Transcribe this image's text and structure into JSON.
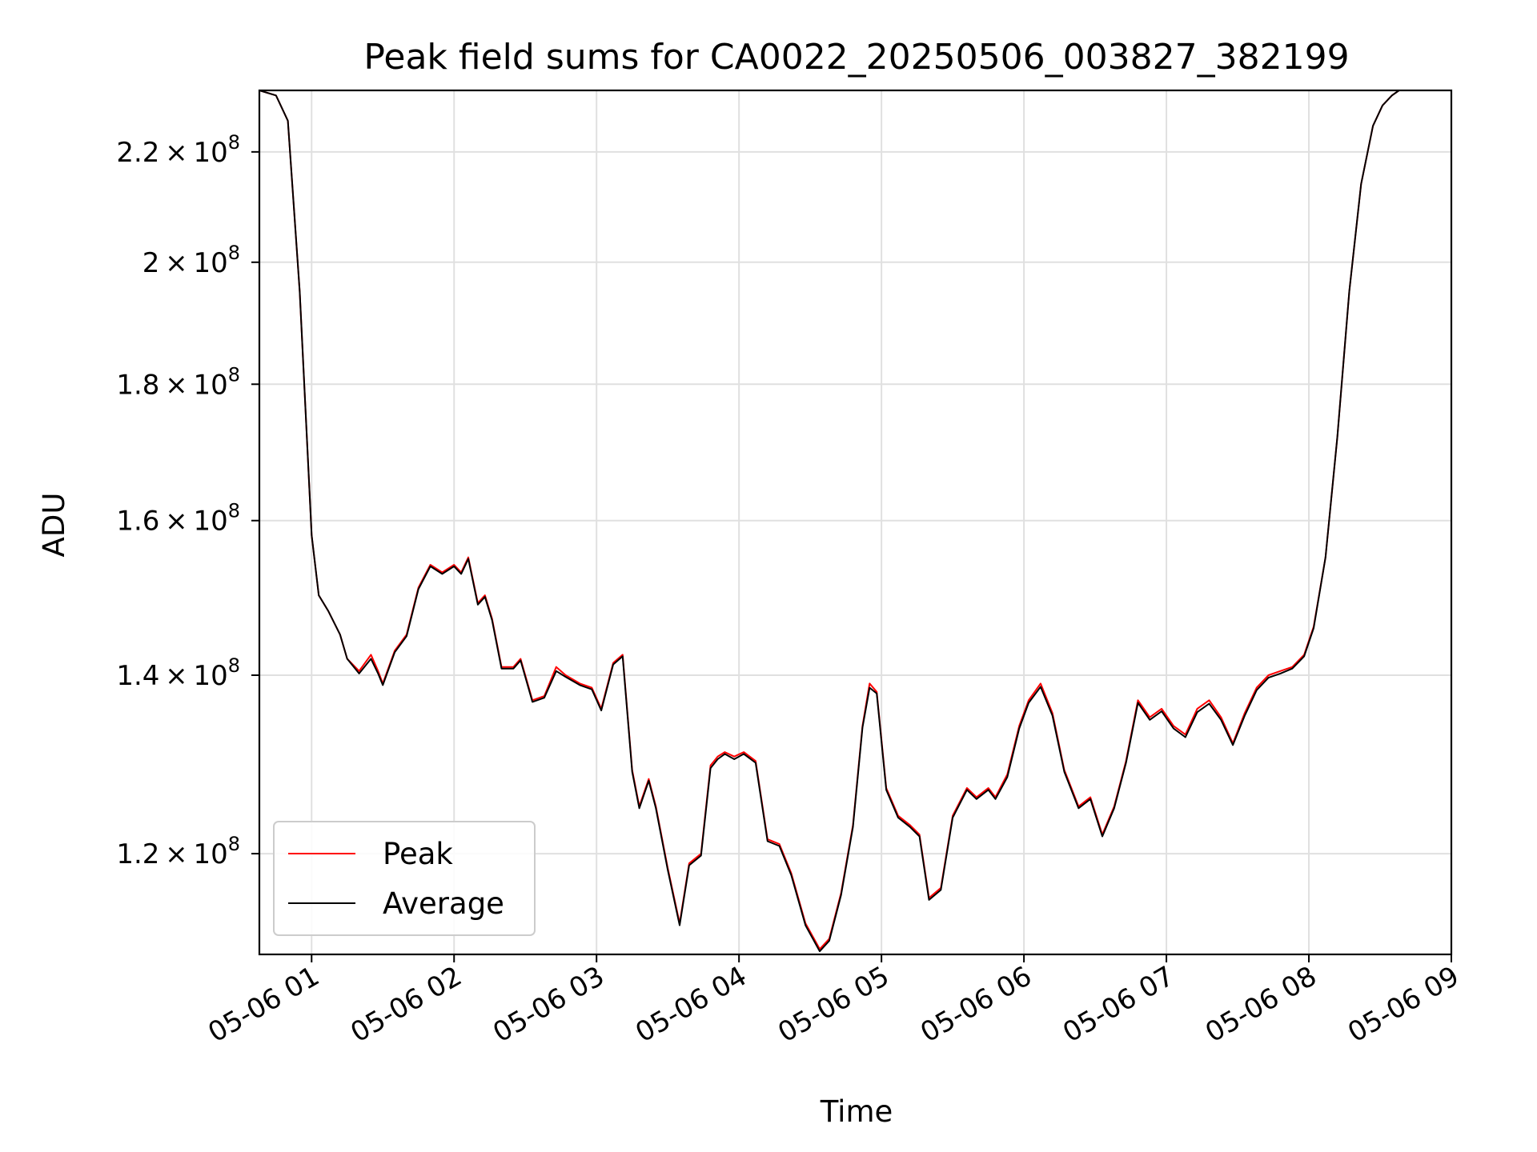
{
  "chart_data": {
    "type": "line",
    "title": "Peak field sums for CA0022_20250506_003827_382199",
    "xlabel": "Time",
    "ylabel": "ADU",
    "yscale": "log",
    "grid": true,
    "legend_position": "lower-left",
    "xlim": [
      "2025-05-06 00:38",
      "2025-05-06 09:00"
    ],
    "ylim": [
      110000000,
      232000000
    ],
    "x_ticks": [
      "05-06 01",
      "05-06 02",
      "05-06 03",
      "05-06 04",
      "05-06 05",
      "05-06 06",
      "05-06 07",
      "05-06 08",
      "05-06 09"
    ],
    "y_ticks": [
      {
        "value": 120000000,
        "mantissa": "1.2",
        "base": "10",
        "exp": "8"
      },
      {
        "value": 140000000,
        "mantissa": "1.4",
        "base": "10",
        "exp": "8"
      },
      {
        "value": 160000000,
        "mantissa": "1.6",
        "base": "10",
        "exp": "8"
      },
      {
        "value": 180000000,
        "mantissa": "1.8",
        "base": "10",
        "exp": "8"
      },
      {
        "value": 200000000,
        "mantissa": "2",
        "base": "10",
        "exp": "8"
      },
      {
        "value": 220000000,
        "mantissa": "2.2",
        "base": "10",
        "exp": "8"
      }
    ],
    "x_time_format": "HH:MM on 2025-05-06",
    "x": [
      "00:38",
      "00:45",
      "00:50",
      "00:55",
      "00:58",
      "01:00",
      "01:03",
      "01:07",
      "01:12",
      "01:15",
      "01:20",
      "01:25",
      "01:28",
      "01:30",
      "01:35",
      "01:40",
      "01:45",
      "01:50",
      "01:55",
      "02:00",
      "02:03",
      "02:06",
      "02:10",
      "02:13",
      "02:16",
      "02:20",
      "02:25",
      "02:28",
      "02:33",
      "02:38",
      "02:43",
      "02:47",
      "02:53",
      "02:58",
      "03:02",
      "03:07",
      "03:11",
      "03:15",
      "03:18",
      "03:22",
      "03:25",
      "03:30",
      "03:35",
      "03:39",
      "03:44",
      "03:48",
      "03:51",
      "03:54",
      "03:58",
      "04:02",
      "04:07",
      "04:12",
      "04:17",
      "04:22",
      "04:28",
      "04:34",
      "04:38",
      "04:43",
      "04:48",
      "04:52",
      "04:55",
      "04:58",
      "05:02",
      "05:07",
      "05:12",
      "05:16",
      "05:20",
      "05:25",
      "05:30",
      "05:36",
      "05:40",
      "05:45",
      "05:48",
      "05:53",
      "05:58",
      "06:02",
      "06:07",
      "06:12",
      "06:17",
      "06:23",
      "06:28",
      "06:33",
      "06:38",
      "06:43",
      "06:48",
      "06:53",
      "06:58",
      "07:03",
      "07:08",
      "07:13",
      "07:18",
      "07:23",
      "07:28",
      "07:33",
      "07:38",
      "07:43",
      "07:48",
      "07:53",
      "07:58",
      "08:02",
      "08:07",
      "08:12",
      "08:17",
      "08:22",
      "08:27",
      "08:31",
      "08:35",
      "08:38",
      "08:42",
      "08:45",
      "08:48",
      "08:52",
      "08:56",
      "09:00"
    ],
    "series": [
      {
        "name": "Peak",
        "color": "#ff0000",
        "values": [
          232000000,
          231000000,
          226000000,
          195000000,
          172000000,
          158000000,
          150000000,
          148000000,
          145000000,
          142000000,
          140500000,
          142500000,
          140500000,
          139000000,
          143000000,
          145000000,
          151000000,
          154000000,
          153000000,
          154000000,
          153000000,
          155000000,
          149000000,
          150000000,
          147000000,
          141000000,
          141000000,
          142000000,
          137000000,
          137500000,
          141000000,
          140000000,
          139000000,
          138500000,
          136000000,
          141500000,
          142500000,
          129000000,
          125000000,
          128000000,
          125000000,
          118500000,
          113000000,
          119000000,
          120000000,
          129500000,
          130500000,
          131000000,
          130500000,
          131000000,
          130000000,
          121500000,
          121000000,
          118000000,
          113000000,
          110500000,
          111500000,
          116000000,
          123000000,
          134000000,
          139000000,
          138000000,
          127000000,
          124000000,
          123000000,
          122000000,
          115500000,
          116500000,
          124000000,
          127000000,
          126000000,
          127000000,
          126000000,
          128500000,
          134000000,
          137000000,
          139000000,
          135500000,
          129000000,
          125000000,
          126000000,
          122000000,
          125000000,
          130000000,
          137000000,
          135000000,
          136000000,
          134000000,
          133000000,
          136000000,
          137000000,
          135000000,
          132000000,
          135500000,
          138500000,
          140000000,
          140500000,
          141000000,
          142500000,
          146000000,
          155000000,
          172000000,
          195000000,
          214000000,
          225000000,
          229000000,
          231000000,
          232000000,
          232000000,
          232000000,
          232000000,
          232000000,
          232000000,
          232000000
        ]
      },
      {
        "name": "Average",
        "color": "#000000",
        "values": [
          232000000,
          231000000,
          226000000,
          195000000,
          172000000,
          158000000,
          150000000,
          148000000,
          145000000,
          142000000,
          140200000,
          142000000,
          140200000,
          138800000,
          142800000,
          144800000,
          150800000,
          153800000,
          152800000,
          153800000,
          152800000,
          154800000,
          148800000,
          149800000,
          146800000,
          140800000,
          140800000,
          141800000,
          136800000,
          137300000,
          140500000,
          139800000,
          138800000,
          138300000,
          135800000,
          141300000,
          142300000,
          128800000,
          124800000,
          127800000,
          124800000,
          118300000,
          112800000,
          118800000,
          119800000,
          129200000,
          130200000,
          130800000,
          130200000,
          130800000,
          129800000,
          121300000,
          120800000,
          117800000,
          112800000,
          110300000,
          111300000,
          115800000,
          122800000,
          133800000,
          138500000,
          137800000,
          126800000,
          123800000,
          122800000,
          121800000,
          115300000,
          116300000,
          123800000,
          126800000,
          125800000,
          126800000,
          125800000,
          128200000,
          133700000,
          136700000,
          138600000,
          135200000,
          128800000,
          124800000,
          125800000,
          121800000,
          124800000,
          129800000,
          136700000,
          134700000,
          135700000,
          133700000,
          132700000,
          135600000,
          136600000,
          134700000,
          131800000,
          135200000,
          138200000,
          139700000,
          140200000,
          140800000,
          142300000,
          145800000,
          155000000,
          172000000,
          195000000,
          214000000,
          225000000,
          229000000,
          231000000,
          232000000,
          232000000,
          232000000,
          232000000,
          232000000,
          232000000,
          232000000
        ]
      }
    ]
  }
}
